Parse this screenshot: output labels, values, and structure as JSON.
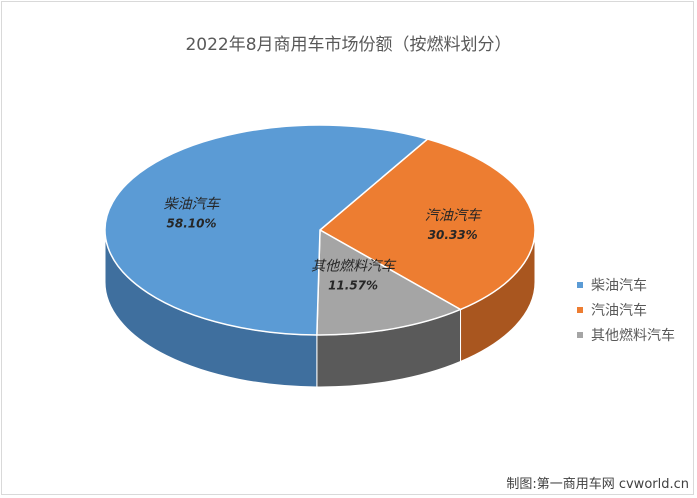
{
  "chart_data": {
    "type": "pie",
    "title": "2022年8月商用车市场份额（按燃料划分）",
    "categories": [
      "柴油汽车",
      "汽油汽车",
      "其他燃料汽车"
    ],
    "values": [
      58.1,
      30.33,
      11.57
    ],
    "value_labels": [
      "58.10%",
      "30.33%",
      "11.57%"
    ],
    "colors": [
      "#5b9bd5",
      "#ed7d31",
      "#a5a5a5"
    ],
    "side_colors": [
      "#3f6f9e",
      "#a9561f",
      "#5a5a5a"
    ],
    "legend_position": "right",
    "style": "3d"
  },
  "footer": {
    "credit": "制图:第一商用车网 cvworld.cn"
  }
}
